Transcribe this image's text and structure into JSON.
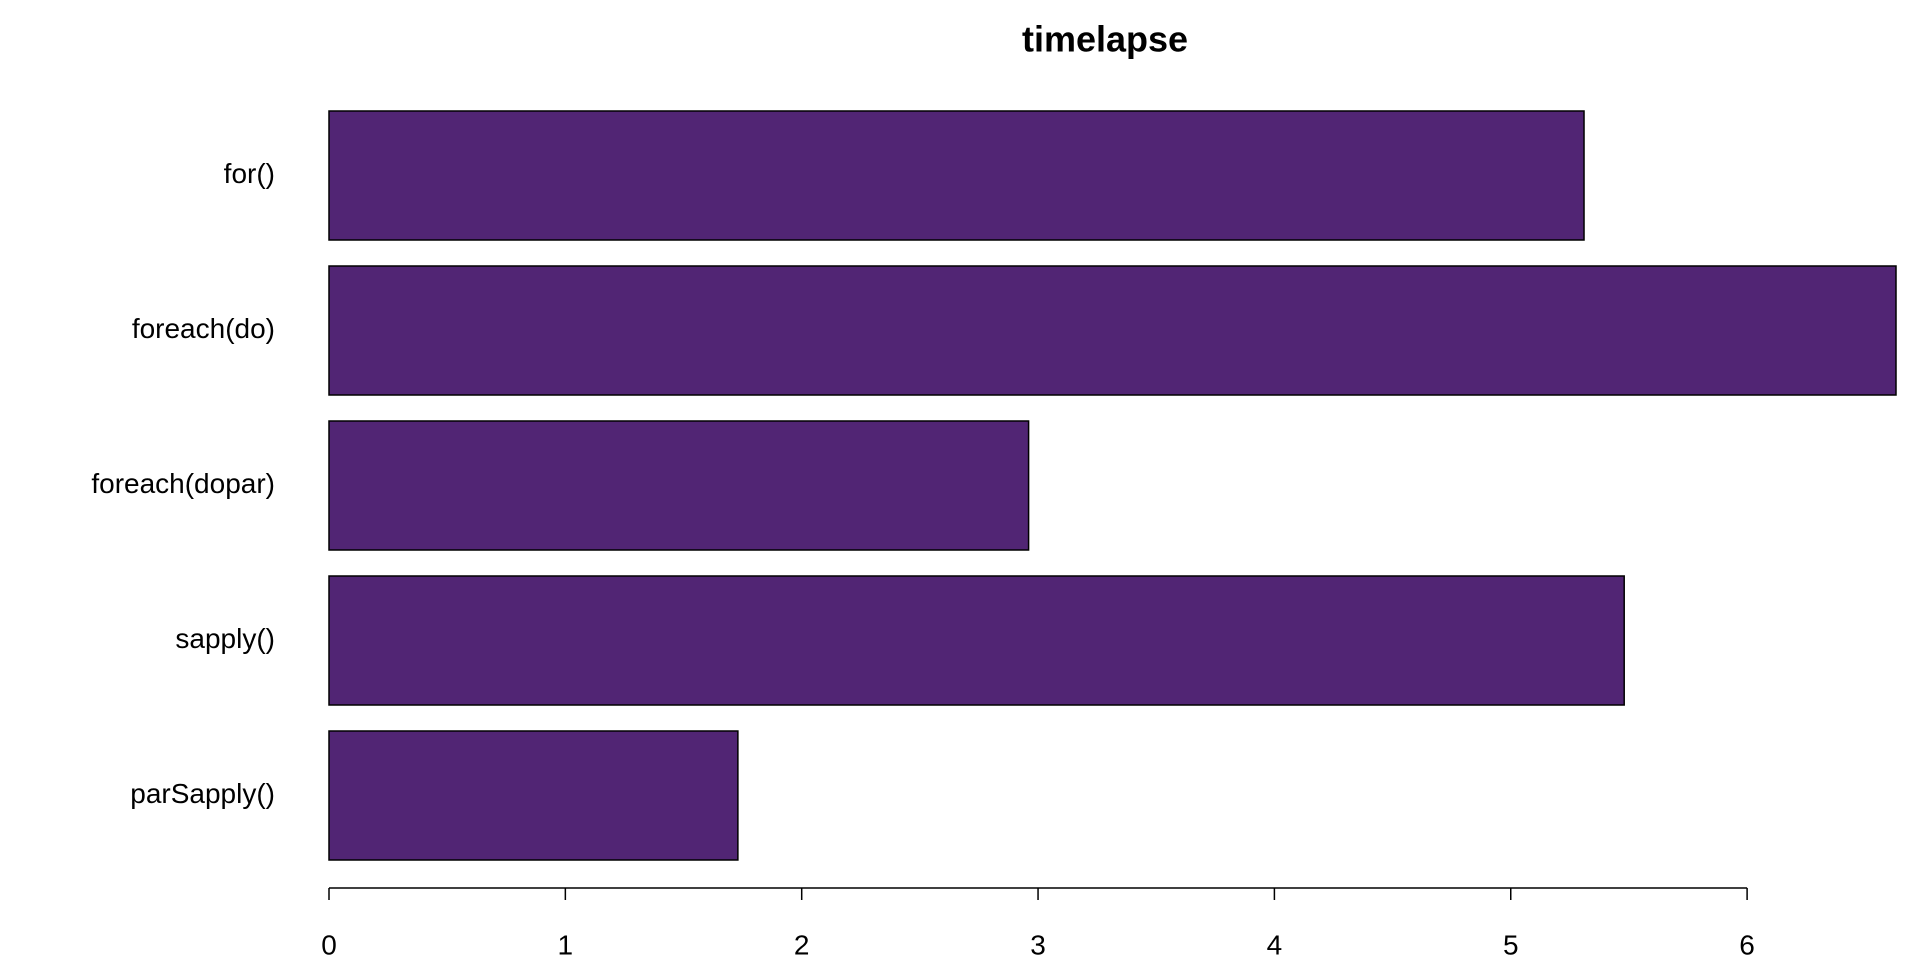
{
  "chart_data": {
    "type": "bar",
    "orientation": "horizontal",
    "title": "timelapse",
    "categories": [
      "for()",
      "foreach(do)",
      "foreach(dopar)",
      "sapply()",
      "parSapply()"
    ],
    "values": [
      5.31,
      6.63,
      2.96,
      5.48,
      1.73
    ],
    "color": "#512574",
    "xlim": [
      0,
      6.63
    ],
    "xticks": [
      0,
      1,
      2,
      3,
      4,
      5,
      6
    ],
    "grid": false
  }
}
